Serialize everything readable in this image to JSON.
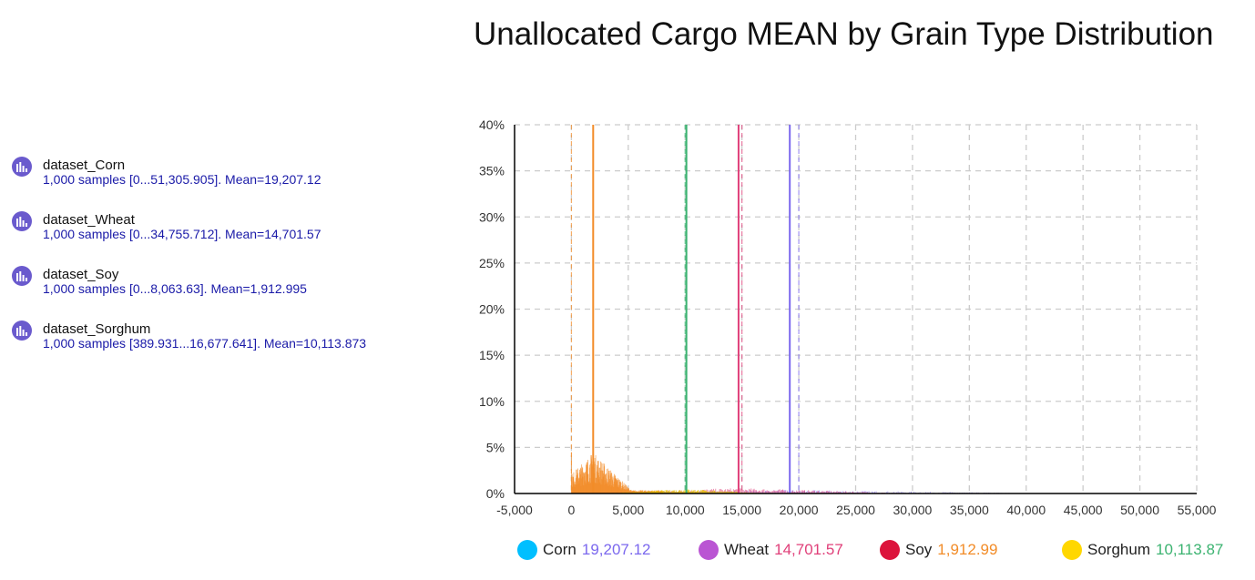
{
  "datasets": [
    {
      "name": "dataset_Corn",
      "description": "1,000 samples [0...51,305.905]. Mean=19,207.12"
    },
    {
      "name": "dataset_Wheat",
      "description": "1,000 samples [0...34,755.712]. Mean=14,701.57"
    },
    {
      "name": "dataset_Soy",
      "description": "1,000 samples [0...8,063.63]. Mean=1,912.995"
    },
    {
      "name": "dataset_Sorghum",
      "description": "1,000 samples [389.931...16,677.641]. Mean=10,113.873"
    }
  ],
  "dataset_icon": "histogram-icon",
  "dataset_icon_color": "#6a5acd",
  "legend": [
    {
      "name": "Corn",
      "value": "19,207.12",
      "dot_color": "#00bfff",
      "value_color": "#7b68ee"
    },
    {
      "name": "Wheat",
      "value": "14,701.57",
      "dot_color": "#ba55d3",
      "value_color": "#e0407a"
    },
    {
      "name": "Soy",
      "value": "1,912.99",
      "dot_color": "#dc143c",
      "value_color": "#f28c28"
    },
    {
      "name": "Sorghum",
      "value": "10,113.87",
      "dot_color": "#ffd700",
      "value_color": "#3cb371"
    }
  ],
  "chart_data": {
    "type": "histogram",
    "title": "Unallocated Cargo MEAN by Grain Type Distribution",
    "xlabel": "",
    "ylabel": "",
    "xlim": [
      -5000,
      55000
    ],
    "ylim": [
      0,
      40
    ],
    "x_ticks": [
      "-5,000",
      "0",
      "5,000",
      "10,000",
      "15,000",
      "20,000",
      "25,000",
      "30,000",
      "35,000",
      "40,000",
      "45,000",
      "50,000",
      "55,000"
    ],
    "y_ticks": [
      "0%",
      "5%",
      "10%",
      "15%",
      "20%",
      "25%",
      "30%",
      "35%",
      "40%"
    ],
    "grid": true,
    "legend_position": "bottom",
    "mean_lines": [
      {
        "series": "Corn",
        "x": 19207.12,
        "color": "#7b68ee",
        "dashed_companion": 20000
      },
      {
        "series": "Wheat",
        "x": 14701.57,
        "color": "#e0407a",
        "dashed_companion": 15000
      },
      {
        "series": "Soy",
        "x": 1912.995,
        "color": "#f28c28",
        "dashed_companion": 0
      },
      {
        "series": "Sorghum",
        "x": 10113.873,
        "color": "#3cb371",
        "dashed_companion": 10000
      }
    ],
    "series": [
      {
        "name": "Corn",
        "color": "#7b68ee",
        "range": [
          0,
          51305.905
        ],
        "mean": 19207.12,
        "approx_peak_pct": 0.4
      },
      {
        "name": "Wheat",
        "color": "#e0407a",
        "range": [
          0,
          34755.712
        ],
        "mean": 14701.57,
        "approx_peak_pct": 0.6
      },
      {
        "name": "Soy",
        "color": "#f28c28",
        "range": [
          0,
          8063.63
        ],
        "mean": 1912.995,
        "approx_peak_pct": 4.5
      },
      {
        "name": "Sorghum",
        "color": "#e6c800",
        "range": [
          389.931,
          16677.641
        ],
        "mean": 10113.873,
        "approx_peak_pct": 0.5
      }
    ]
  }
}
